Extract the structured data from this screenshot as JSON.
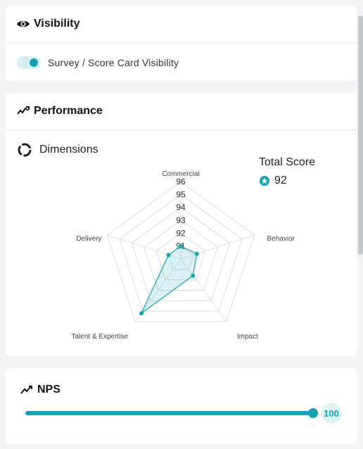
{
  "visibility": {
    "title": "Visibility",
    "icon": "eye-icon",
    "toggle_label": "Survey / Score Card Visibility",
    "toggle_on": true
  },
  "performance": {
    "title": "Performance",
    "icon": "trend-icon",
    "dimensions_title": "Dimensions",
    "total_score_label": "Total Score",
    "total_score_value": "92"
  },
  "nps": {
    "title": "NPS",
    "value": "100",
    "fill_percent": 100
  },
  "colors": {
    "accent": "#13a4b4",
    "accent_light": "#dcf2f4"
  },
  "chart_data": {
    "type": "radar",
    "axes": [
      "Commercial",
      "Behavior",
      "Impact",
      "Talent & Expertise",
      "Delivery"
    ],
    "ticks": [
      "91",
      "92",
      "93",
      "94",
      "95",
      "96"
    ],
    "range": [
      90,
      96
    ],
    "values": [
      91.0,
      91.3,
      91.6,
      95.2,
      91.0
    ],
    "grid": true
  }
}
